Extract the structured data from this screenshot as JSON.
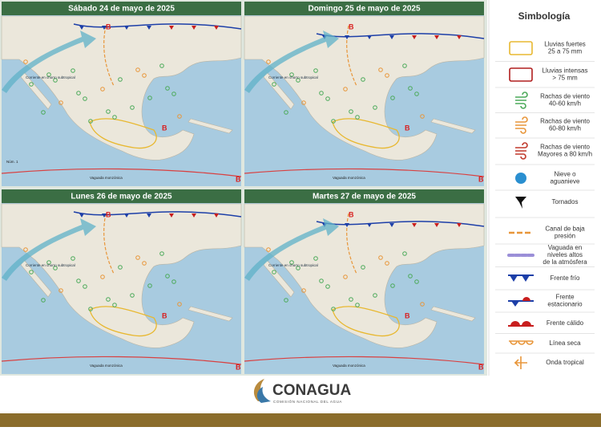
{
  "panels": [
    {
      "title": "Sábado 24 de mayo de 2025",
      "labels": [
        "Corriente en chorro subtropical",
        "Vaguada monzónica",
        "Núm. 1",
        "B",
        "B",
        "B"
      ]
    },
    {
      "title": "Domingo 25 de mayo de 2025",
      "labels": [
        "Corriente en chorro subtropical",
        "Vaguada monzónica",
        "B",
        "B",
        "B"
      ]
    },
    {
      "title": "Lunes 26 de mayo de 2025",
      "labels": [
        "Corriente en chorro subtropical",
        "Vaguada monzónica",
        "B",
        "B",
        "B"
      ]
    },
    {
      "title": "Martes 27 de mayo de 2025",
      "labels": [
        "Corriente en chorro subtropical",
        "Vaguada monzónica",
        "B",
        "B",
        "B"
      ]
    }
  ],
  "legend": {
    "title": "Simbología",
    "items": [
      [
        "Lluvias fuertes",
        "25 a 75 mm"
      ],
      [
        "Lluvias intensas",
        "> 75 mm"
      ],
      [
        "Rachas de viento",
        "40-60 km/h"
      ],
      [
        "Rachas de viento",
        "60-80 km/h"
      ],
      [
        "Rachas de viento",
        "Mayores a 80 km/h"
      ],
      [
        "Nieve o",
        "aguanieve"
      ],
      [
        "Tornados"
      ],
      [
        "Canal de baja",
        "presión"
      ],
      [
        "Vaguada en",
        "niveles altos",
        "de la atmósfera"
      ],
      [
        "Frente frío"
      ],
      [
        "Frente",
        "estacionario"
      ],
      [
        "Frente cálido"
      ],
      [
        "Línea seca"
      ],
      [
        "Onda tropical"
      ]
    ]
  },
  "footer": {
    "logo": "CONAGUA",
    "subtitle": "COMISIÓN NACIONAL DEL AGUA"
  }
}
